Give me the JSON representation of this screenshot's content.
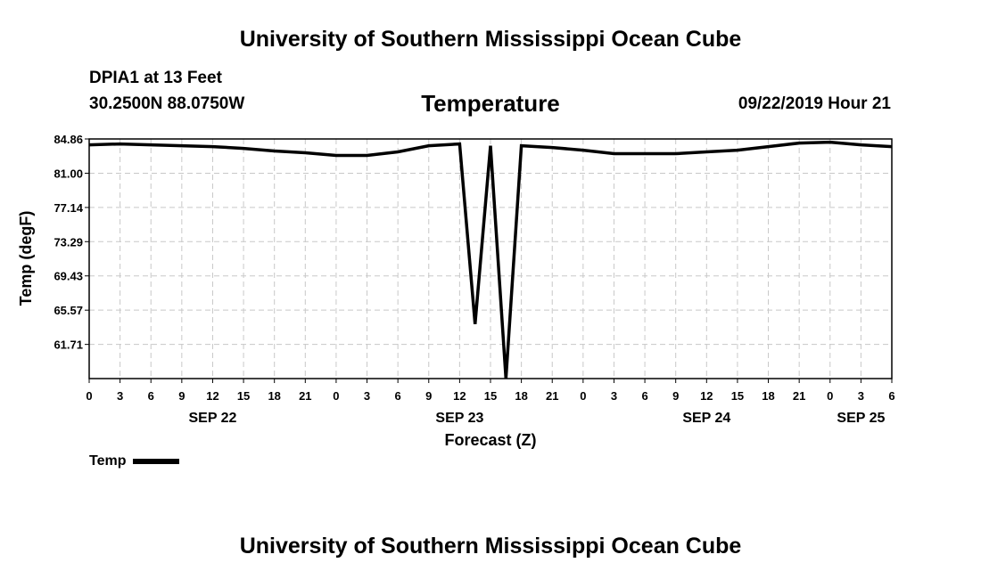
{
  "header": {
    "title": "University of Southern Mississippi Ocean Cube",
    "station": "DPIA1 at 13 Feet",
    "coords": "30.2500N 88.0750W",
    "datetime": "09/22/2019 Hour 21",
    "footer_title": "University of Southern Mississippi Ocean Cube"
  },
  "legend": {
    "label": "Temp"
  },
  "chart_data": {
    "type": "line",
    "title": "Temperature",
    "xlabel": "Forecast (Z)",
    "ylabel": "Temp (degF)",
    "ylim": [
      57.86,
      84.86
    ],
    "yticks": [
      "84.86",
      "81.00",
      "77.14",
      "73.29",
      "69.43",
      "65.57",
      "61.71"
    ],
    "xlim": [
      0,
      78
    ],
    "xtick_hours": [
      0,
      3,
      6,
      9,
      12,
      15,
      18,
      21,
      24,
      27,
      30,
      33,
      36,
      39,
      42,
      45,
      48,
      51,
      54,
      57,
      60,
      63,
      66,
      69,
      72,
      75,
      78
    ],
    "xtick_labels": [
      "0",
      "3",
      "6",
      "9",
      "12",
      "15",
      "18",
      "21",
      "0",
      "3",
      "6",
      "9",
      "12",
      "15",
      "18",
      "21",
      "0",
      "3",
      "6",
      "9",
      "12",
      "15",
      "18",
      "21",
      "0",
      "3",
      "6"
    ],
    "day_labels": [
      {
        "label": "SEP 22",
        "hour": 12
      },
      {
        "label": "SEP 23",
        "hour": 36
      },
      {
        "label": "SEP 24",
        "hour": 60
      },
      {
        "label": "SEP 25",
        "hour": 75
      }
    ],
    "grid": true,
    "series": [
      {
        "name": "Temp",
        "color": "#000000",
        "points": [
          [
            0,
            84.2
          ],
          [
            3,
            84.3
          ],
          [
            6,
            84.2
          ],
          [
            9,
            84.1
          ],
          [
            12,
            84.0
          ],
          [
            15,
            83.8
          ],
          [
            18,
            83.5
          ],
          [
            21,
            83.3
          ],
          [
            24,
            83.0
          ],
          [
            27,
            83.0
          ],
          [
            30,
            83.4
          ],
          [
            33,
            84.1
          ],
          [
            36,
            84.3
          ],
          [
            37.5,
            64.0
          ],
          [
            39,
            84.1
          ],
          [
            40.5,
            57.86
          ],
          [
            42,
            84.1
          ],
          [
            45,
            83.9
          ],
          [
            48,
            83.6
          ],
          [
            51,
            83.2
          ],
          [
            54,
            83.2
          ],
          [
            57,
            83.2
          ],
          [
            60,
            83.4
          ],
          [
            63,
            83.6
          ],
          [
            66,
            84.0
          ],
          [
            69,
            84.4
          ],
          [
            72,
            84.5
          ],
          [
            75,
            84.2
          ],
          [
            78,
            84.0
          ]
        ]
      }
    ]
  }
}
